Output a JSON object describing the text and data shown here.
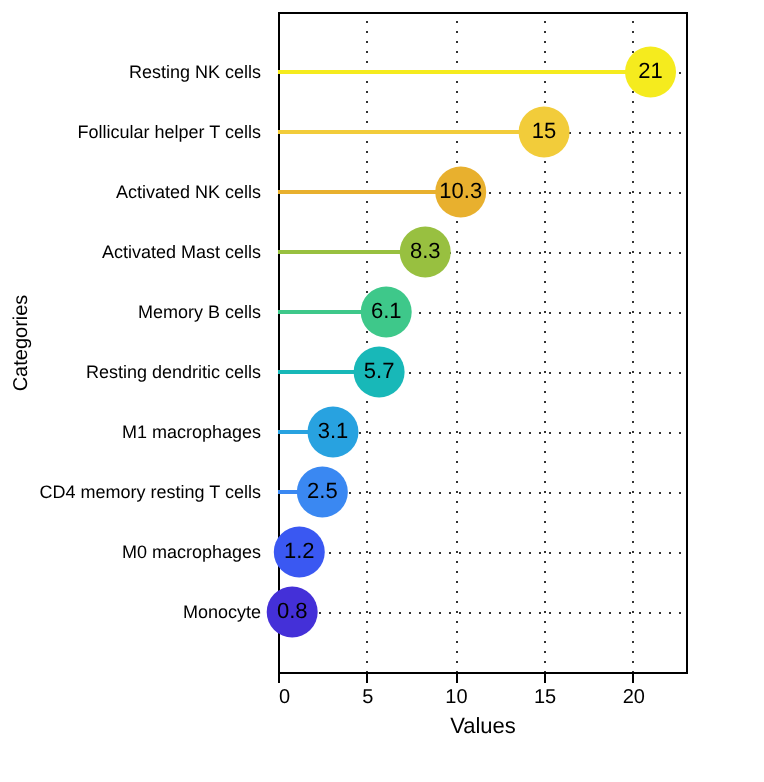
{
  "chart_data": {
    "type": "lollipop",
    "orientation": "horizontal",
    "xlabel": "Values",
    "ylabel": "Categories",
    "categories": [
      "Resting NK cells",
      "Follicular helper T cells",
      "Activated NK cells",
      "Activated Mast cells",
      "Memory B cells",
      "Resting dendritic cells",
      "M1 macrophages",
      "CD4 memory resting T cells",
      "M0 macrophages",
      "Monocyte"
    ],
    "values": [
      21,
      15,
      10.3,
      8.3,
      6.1,
      5.7,
      3.1,
      2.5,
      1.2,
      0.8
    ],
    "colors": [
      "#f5eb1e",
      "#f2cc3a",
      "#e8b02e",
      "#98c040",
      "#3ec88a",
      "#18b8b8",
      "#28a2e0",
      "#3a88f2",
      "#3a58f2",
      "#4430d8"
    ],
    "xlim": [
      0,
      23
    ],
    "xticks": [
      0,
      5,
      10,
      15,
      20
    ],
    "grid": true,
    "data_labels": true
  }
}
